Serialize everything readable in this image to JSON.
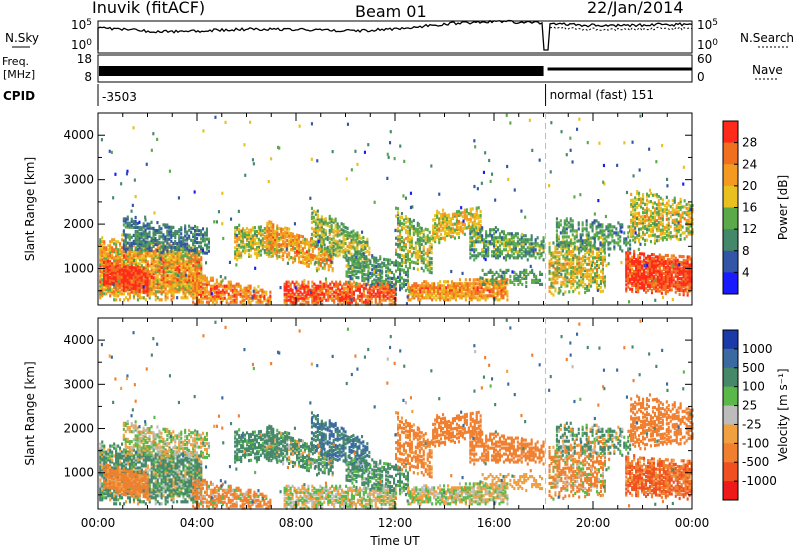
{
  "header": {
    "station": "Inuvik (fitACF)",
    "beam": "Beam 01",
    "date": "22/Jan/2014"
  },
  "status_panels": {
    "nsky_label": "N.Sky",
    "nsky_ticks": [
      "10^5",
      "10^0"
    ],
    "nsearch_label": "N.Search",
    "nsearch_ticks": [
      "10^5",
      "10^0"
    ],
    "freq_label_1": "Freq.",
    "freq_label_2": "[MHz]",
    "freq_ticks": [
      "18",
      "8"
    ],
    "nave_label": "Nave",
    "nave_ticks": [
      "60",
      "0"
    ],
    "cpid_label": "CPID",
    "cpid_1": "-3503",
    "cpid_2": "normal (fast) 151",
    "mode_switch_time": "18:05"
  },
  "chart_data": [
    {
      "type": "heatmap",
      "name": "power",
      "ylabel": "Slant Range [km]",
      "yticks": [
        "1000",
        "2000",
        "3000",
        "4000"
      ],
      "ylim": [
        180,
        4500
      ],
      "xlim": [
        "00:00",
        "24:00"
      ],
      "colorbar_label": "Power [dB]",
      "colorbar_ticks": [
        "4",
        "8",
        "12",
        "16",
        "20",
        "24",
        "28"
      ],
      "colorbar_colors": [
        "#1a1aff",
        "#3355a8",
        "#44886a",
        "#5aaa4a",
        "#e8c020",
        "#f59a20",
        "#f07020",
        "#ff2a1a"
      ],
      "clim": [
        0,
        30
      ]
    },
    {
      "type": "heatmap",
      "name": "velocity",
      "ylabel": "Slant Range [km]",
      "yticks": [
        "1000",
        "2000",
        "3000",
        "4000"
      ],
      "ylim": [
        180,
        4500
      ],
      "xlim": [
        "00:00",
        "24:00"
      ],
      "xlabel": "Time UT",
      "xticks": [
        "00:00",
        "04:00",
        "08:00",
        "12:00",
        "16:00",
        "20:00",
        "00:00"
      ],
      "colorbar_label": "Velocity [m s⁻¹]",
      "colorbar_ticks": [
        "1000",
        "500",
        "100",
        "25",
        "-25",
        "-100",
        "-500",
        "-1000"
      ],
      "colorbar_colors": [
        "#1a3aa8",
        "#3a6aa0",
        "#45886a",
        "#5ab84a",
        "#bcbcbc",
        "#f0a040",
        "#f08030",
        "#f05020",
        "#ee1a1a"
      ]
    }
  ]
}
